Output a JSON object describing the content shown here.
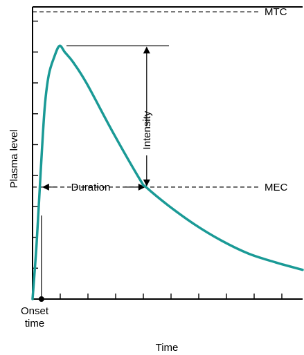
{
  "chart_data": {
    "type": "line",
    "xlabel": "Time",
    "ylabel": "Plasma level",
    "xlim": [
      0,
      10
    ],
    "ylim": [
      0,
      9
    ],
    "x_tick_count": 9,
    "y_tick_count": 9,
    "series": [
      {
        "color": "#1a9a96",
        "x": [
          0,
          0.15,
          0.3,
          0.45,
          0.6,
          0.8,
          1.0,
          1.2,
          1.5,
          2.0,
          3.0,
          4.0,
          4.2,
          5.0,
          6.0,
          7.0,
          8.0,
          9.0,
          10.0
        ],
        "y": [
          0,
          1.7,
          3.9,
          5.9,
          6.9,
          7.45,
          7.8,
          7.6,
          7.3,
          6.65,
          5.1,
          3.65,
          3.45,
          2.9,
          2.3,
          1.8,
          1.4,
          1.13,
          0.9
        ]
      }
    ],
    "reference_lines": [
      {
        "label": "MTC",
        "y": 8.85
      },
      {
        "label": "MEC",
        "y": 3.45
      }
    ],
    "annotations": {
      "intensity": "Intensity",
      "duration": "Duration",
      "onset": [
        "Onset",
        "time"
      ],
      "onset_x": 0.33,
      "peak": {
        "x": 1.0,
        "y": 7.8
      },
      "mec_cross_left_x": 0.33,
      "mec_cross_right_x": 4.2
    }
  }
}
